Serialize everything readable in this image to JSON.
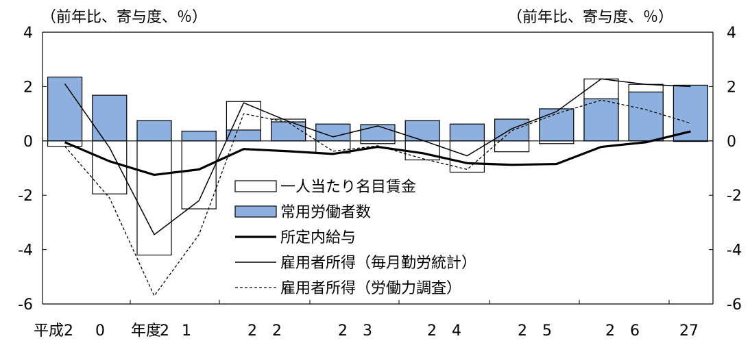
{
  "chart_data": {
    "type": "bar",
    "left_unit": "（前年比、寄与度、％）",
    "right_unit": "（前年比、寄与度、％）",
    "ylim": [
      -6,
      4
    ],
    "yticks": [
      "4",
      "2",
      "0",
      "-2",
      "-4",
      "-6"
    ],
    "ytick_values": [
      4,
      2,
      0,
      -2,
      -4,
      -6
    ],
    "xtick_labels": [
      "平成2",
      "0",
      "年度",
      "2",
      "1",
      "2",
      "2",
      "2",
      "3",
      "2",
      "4",
      "2",
      "5",
      "2",
      "6",
      "27"
    ],
    "series": [
      {
        "name": "一人当たり名目賃金",
        "style": "bar-outline",
        "values": [
          -0.2,
          -1.95,
          -4.2,
          -2.5,
          1.45,
          0.8,
          -0.45,
          -0.1,
          -0.7,
          -1.15,
          -0.4,
          -0.1,
          2.28,
          2.08,
          -0.02
        ]
      },
      {
        "name": "常用労働者数",
        "style": "bar-filled",
        "values": [
          2.35,
          1.68,
          0.75,
          0.36,
          0.4,
          0.7,
          0.62,
          0.6,
          0.75,
          0.62,
          0.8,
          1.18,
          1.55,
          1.8,
          2.05
        ]
      },
      {
        "name": "所定内給与",
        "style": "line-thick",
        "values": [
          -0.05,
          -0.75,
          -1.25,
          -1.05,
          -0.3,
          -0.38,
          -0.48,
          -0.22,
          -0.45,
          -0.82,
          -0.88,
          -0.85,
          -0.22,
          -0.05,
          0.35
        ]
      },
      {
        "name": "雇用者所得（毎月勤労統計）",
        "style": "line-thin",
        "values": [
          2.1,
          -0.25,
          -3.45,
          -2.2,
          1.4,
          0.72,
          0.15,
          0.55,
          0.02,
          -0.55,
          0.45,
          1.08,
          2.28,
          2.08,
          2.0
        ]
      },
      {
        "name": "雇用者所得（労働力調査）",
        "style": "line-dashed",
        "values": [
          -0.2,
          -2.1,
          -5.7,
          -3.45,
          1.0,
          0.68,
          -0.38,
          -0.18,
          -0.65,
          -1.05,
          0.38,
          1.0,
          1.5,
          1.15,
          0.65
        ]
      }
    ],
    "accent": "#8eb0de",
    "bar_stroke": "#000000"
  }
}
